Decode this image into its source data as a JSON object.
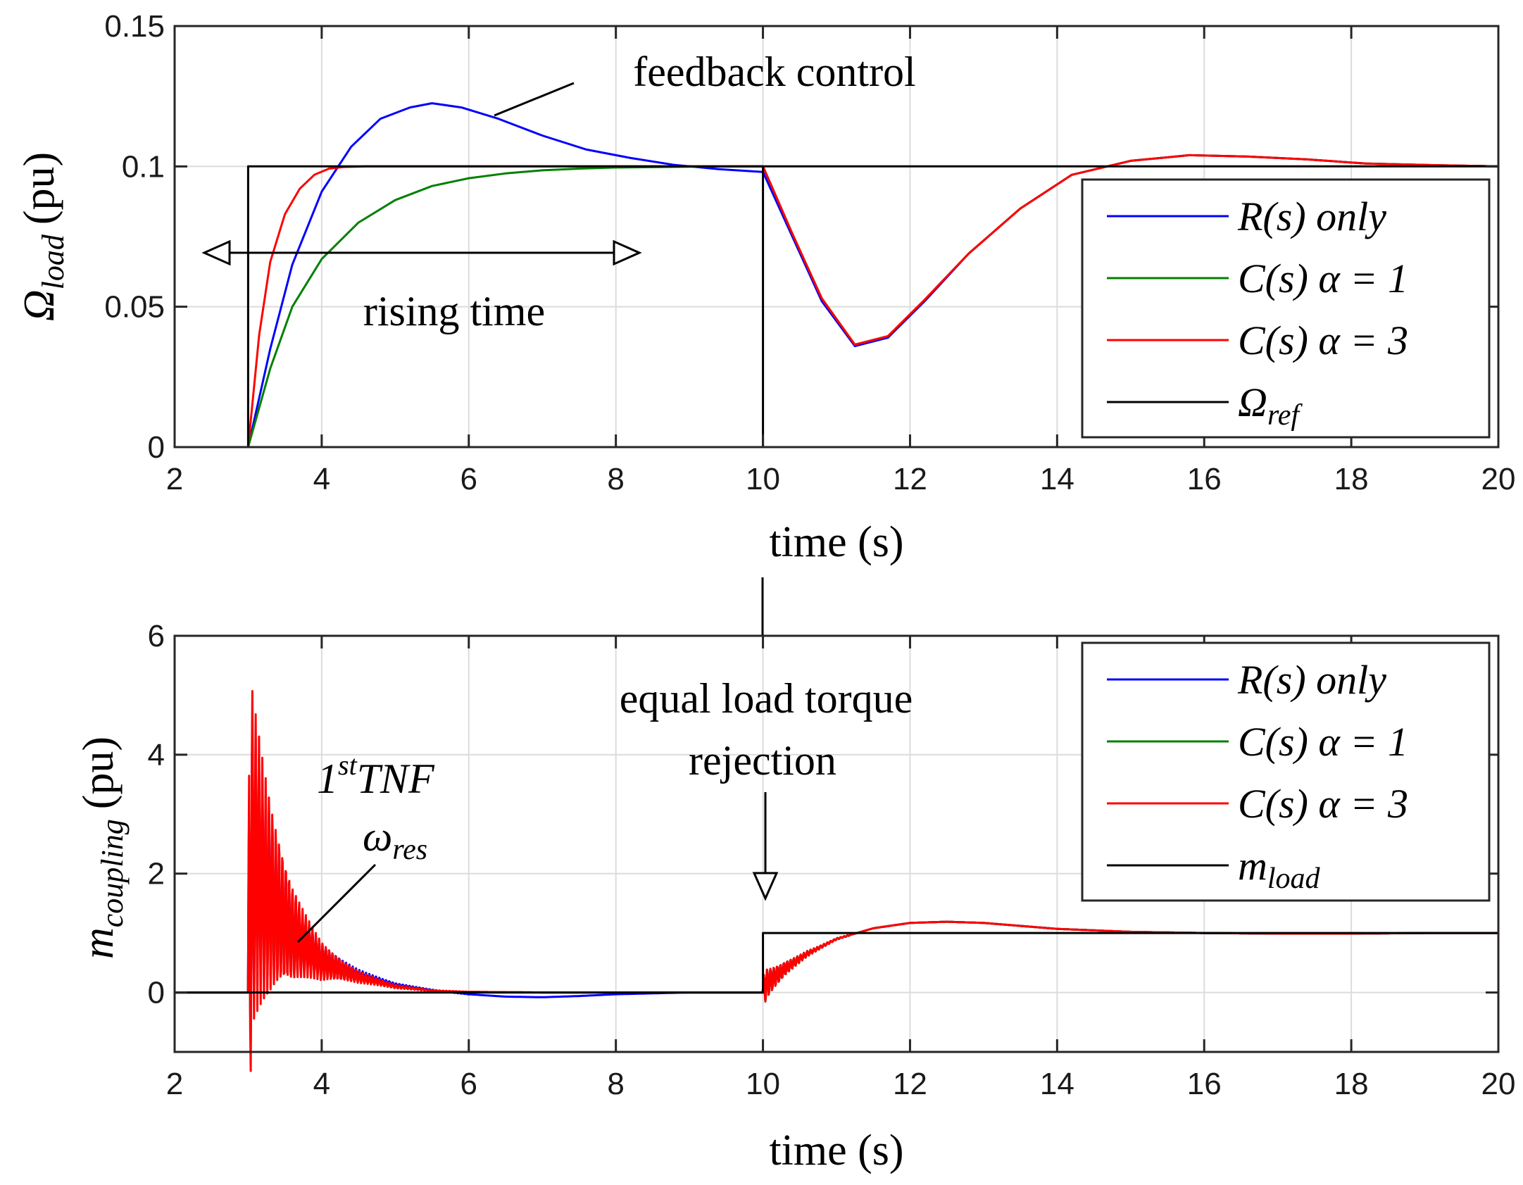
{
  "chart_data": [
    {
      "type": "line",
      "xlabel": "time (s)",
      "ylabel": {
        "main": "Ω",
        "sub": "load",
        "unit": "(pu)"
      },
      "xlim": [
        2,
        20
      ],
      "ylim": [
        0,
        0.15
      ],
      "xticks": [
        "2",
        "4",
        "6",
        "8",
        "10",
        "12",
        "14",
        "16",
        "18",
        "20"
      ],
      "xtick_values": [
        2,
        4,
        6,
        8,
        10,
        12,
        14,
        16,
        18,
        20
      ],
      "yticks": [
        "0",
        "0.05",
        "0.1",
        "0.15"
      ],
      "ytick_values": [
        0,
        0.05,
        0.1,
        0.15
      ],
      "grid": true,
      "legend_position": "right",
      "series": [
        {
          "name": "R(s) only",
          "color": "#0000ff",
          "x": [
            2,
            3,
            3.3,
            3.6,
            4,
            4.4,
            4.8,
            5.2,
            5.5,
            5.9,
            6.4,
            7,
            7.6,
            8.2,
            8.8,
            9.4,
            10,
            10.4,
            10.8,
            11.25,
            11.7,
            12.2,
            12.8,
            13.5,
            14.2,
            15,
            15.8,
            16.6,
            17.4,
            18.2,
            19,
            20
          ],
          "y": [
            0,
            0,
            0.035,
            0.065,
            0.091,
            0.107,
            0.117,
            0.121,
            0.1225,
            0.121,
            0.117,
            0.111,
            0.106,
            0.103,
            0.1005,
            0.099,
            0.098,
            0.075,
            0.052,
            0.036,
            0.039,
            0.052,
            0.069,
            0.085,
            0.097,
            0.102,
            0.104,
            0.1035,
            0.1025,
            0.101,
            0.1005,
            0.1
          ]
        },
        {
          "name": "C(s) α = 1",
          "color": "#008000",
          "x": [
            2,
            3,
            3.3,
            3.6,
            4,
            4.5,
            5,
            5.5,
            6,
            6.5,
            7,
            7.5,
            8,
            9,
            10,
            10.4,
            10.8,
            11.25,
            11.7,
            12.2,
            12.8,
            13.5,
            14.2,
            15,
            15.8,
            16.6,
            17.4,
            18.2,
            19,
            20
          ],
          "y": [
            0,
            0,
            0.028,
            0.05,
            0.067,
            0.08,
            0.088,
            0.093,
            0.0958,
            0.0975,
            0.0986,
            0.0992,
            0.0996,
            0.0999,
            0.1,
            0.076,
            0.053,
            0.0365,
            0.0395,
            0.0525,
            0.069,
            0.085,
            0.097,
            0.102,
            0.104,
            0.1035,
            0.1025,
            0.101,
            0.1005,
            0.1
          ]
        },
        {
          "name": "C(s) α = 3",
          "color": "#ff0000",
          "x": [
            2,
            3,
            3.15,
            3.3,
            3.5,
            3.7,
            3.9,
            4.1,
            4.3,
            4.6,
            5,
            6,
            7,
            8,
            9,
            10,
            10.4,
            10.8,
            11.25,
            11.7,
            12.2,
            12.8,
            13.5,
            14.2,
            15,
            15.8,
            16.6,
            17.4,
            18.2,
            19,
            20
          ],
          "y": [
            0,
            0,
            0.04,
            0.066,
            0.083,
            0.092,
            0.097,
            0.0992,
            0.0998,
            0.1,
            0.1,
            0.1,
            0.1,
            0.1,
            0.1,
            0.1,
            0.076,
            0.053,
            0.0365,
            0.0395,
            0.0525,
            0.069,
            0.085,
            0.097,
            0.102,
            0.104,
            0.1035,
            0.1025,
            0.101,
            0.1005,
            0.1
          ]
        },
        {
          "name": "Ω_ref",
          "color": "#000000",
          "x": [
            2,
            3,
            3,
            10,
            10,
            10,
            20
          ],
          "y": [
            0,
            0,
            0.1,
            0.1,
            0,
            0.1,
            0.1
          ]
        }
      ],
      "legend": [
        {
          "main": "R(s) only",
          "sub": ""
        },
        {
          "main": "C(s) α = 1",
          "sub": ""
        },
        {
          "main": "C(s) α = 3",
          "sub": ""
        },
        {
          "main": "Ω",
          "sub": "ref"
        }
      ],
      "annotations": [
        "feedback control",
        "rising time"
      ]
    },
    {
      "type": "line",
      "xlabel": "time (s)",
      "ylabel": {
        "main": "m",
        "sub": "coupling",
        "unit": "(pu)"
      },
      "xlim": [
        2,
        20
      ],
      "ylim": [
        -1,
        6
      ],
      "xticks": [
        "2",
        "4",
        "6",
        "8",
        "10",
        "12",
        "14",
        "16",
        "18",
        "20"
      ],
      "xtick_values": [
        2,
        4,
        6,
        8,
        10,
        12,
        14,
        16,
        18,
        20
      ],
      "yticks": [
        "0",
        "2",
        "4",
        "6"
      ],
      "ytick_values": [
        0,
        2,
        4,
        6
      ],
      "grid": true,
      "legend_position": "top-right",
      "series": [
        {
          "name": "R(s) only",
          "color": "#0000ff",
          "x": [
            2,
            3,
            3.05,
            3.3,
            3.6,
            4,
            4.5,
            5,
            5.5,
            6,
            6.5,
            7,
            7.5,
            8,
            9,
            10,
            10.05,
            10.3,
            10.6,
            11,
            11.5,
            12,
            12.5,
            13,
            13.5,
            14,
            15,
            16,
            17,
            18,
            19,
            20
          ],
          "y": [
            0,
            0,
            2.3,
            1.6,
            1.0,
            0.55,
            0.3,
            0.13,
            0.04,
            -0.03,
            -0.07,
            -0.08,
            -0.06,
            -0.03,
            0,
            0,
            0.15,
            0.4,
            0.65,
            0.9,
            1.08,
            1.17,
            1.19,
            1.17,
            1.12,
            1.07,
            1.02,
            1.0,
            0.99,
            0.99,
            1.0,
            1.0
          ]
        },
        {
          "name": "C(s) α = 1",
          "color": "#008000",
          "x": [
            2,
            3,
            3.05,
            3.3,
            3.6,
            4,
            4.5,
            5,
            5.5,
            6,
            7,
            8,
            9,
            10,
            10.05,
            10.3,
            10.6,
            11,
            11.5,
            12,
            12.5,
            13,
            13.5,
            14,
            15,
            16,
            17,
            18,
            19,
            20
          ],
          "y": [
            0,
            0,
            2.2,
            1.5,
            0.95,
            0.5,
            0.25,
            0.1,
            0.03,
            0.01,
            0,
            0,
            0,
            0,
            0.15,
            0.4,
            0.65,
            0.9,
            1.08,
            1.17,
            1.19,
            1.17,
            1.12,
            1.07,
            1.02,
            1.0,
            0.99,
            0.99,
            1.0,
            1.0
          ]
        },
        {
          "name": "C(s) α = 3",
          "color": "#ff0000",
          "x": [
            2,
            3,
            3.05,
            3.3,
            3.6,
            4,
            4.5,
            5,
            5.5,
            6,
            7,
            8,
            9,
            10,
            10.05,
            10.3,
            10.6,
            11,
            11.5,
            12,
            12.5,
            13,
            13.5,
            14,
            15,
            16,
            17,
            18,
            19,
            20
          ],
          "y": [
            0,
            0,
            2.3,
            1.6,
            1.0,
            0.52,
            0.26,
            0.1,
            0.03,
            0.01,
            0,
            0,
            0,
            0,
            0.15,
            0.4,
            0.65,
            0.9,
            1.08,
            1.17,
            1.19,
            1.17,
            1.12,
            1.07,
            1.02,
            1.0,
            0.99,
            0.99,
            1.0,
            1.0
          ]
        },
        {
          "name": "m_load",
          "color": "#000000",
          "x": [
            2,
            10,
            10,
            20
          ],
          "y": [
            0,
            0,
            1,
            1
          ]
        }
      ],
      "legend": [
        {
          "main": "R(s) only",
          "sub": ""
        },
        {
          "main": "C(s) α = 1",
          "sub": ""
        },
        {
          "main": "C(s) α = 3",
          "sub": ""
        },
        {
          "main": "m",
          "sub": "load"
        }
      ],
      "annotations": [
        "equal load torque",
        "rejection",
        "1stTNF",
        "ω_res"
      ]
    }
  ]
}
